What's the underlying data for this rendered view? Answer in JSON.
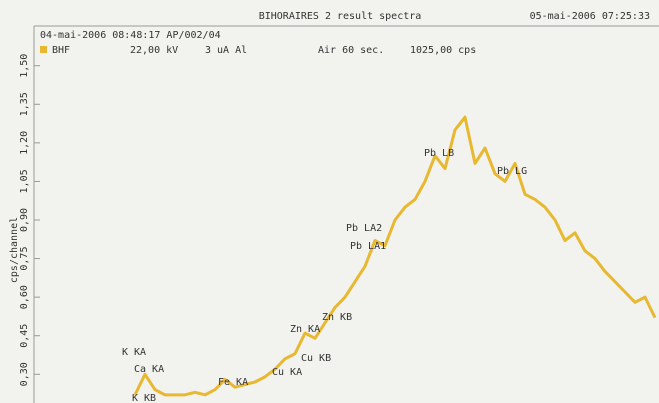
{
  "chart_data": {
    "type": "line",
    "title": "BIHORAIRES 2 result spectra",
    "date": "05-mai-2006 07:25:33",
    "sample": "04-mai-2006 08:48:17 AP/002/04",
    "conditions": [
      "22,00 kV",
      "3 uA Al",
      "Air 60 sec.",
      "1025,00 cps"
    ],
    "ylabel": "cps/channel",
    "ylim": [
      0.2,
      1.6
    ],
    "yticks": [
      {
        "value": 0.3,
        "label": "0,30"
      },
      {
        "value": 0.45,
        "label": "0,45"
      },
      {
        "value": 0.6,
        "label": "0,60"
      },
      {
        "value": 0.75,
        "label": "0,75"
      },
      {
        "value": 0.9,
        "label": "0,90"
      },
      {
        "value": 1.05,
        "label": "1,05"
      },
      {
        "value": 1.2,
        "label": "1,20"
      },
      {
        "value": 1.35,
        "label": "1,35"
      },
      {
        "value": 1.5,
        "label": "1,50"
      }
    ],
    "categories": [
      null,
      null,
      null,
      null,
      null,
      null,
      null,
      null,
      null,
      null,
      null,
      null,
      null,
      null,
      null,
      null,
      null,
      null,
      null,
      null,
      null,
      null,
      null,
      null,
      null,
      null,
      null,
      null,
      null,
      null,
      null,
      null,
      null,
      null,
      null,
      null,
      null,
      null,
      null,
      null,
      null,
      null,
      null,
      null,
      null,
      null,
      null,
      null,
      null,
      null,
      null,
      null,
      null
    ],
    "series": [
      {
        "name": "BHF",
        "color": "#e8b830",
        "values": [
          0.22,
          0.3,
          0.24,
          0.22,
          0.22,
          0.22,
          0.23,
          0.22,
          0.24,
          0.28,
          0.25,
          0.26,
          0.27,
          0.29,
          0.32,
          0.36,
          0.38,
          0.46,
          0.44,
          0.5,
          0.56,
          0.6,
          0.66,
          0.72,
          0.82,
          0.8,
          0.9,
          0.95,
          0.98,
          1.05,
          1.15,
          1.1,
          1.25,
          1.3,
          1.12,
          1.18,
          1.08,
          1.05,
          1.12,
          1.0,
          0.98,
          0.95,
          0.9,
          0.82,
          0.85,
          0.78,
          0.75,
          0.7,
          0.66,
          0.62,
          0.58,
          0.6,
          0.52
        ]
      }
    ],
    "annotations": [
      "K KA",
      "Ca KA",
      "K KB",
      "Fe KA",
      "Cu KA",
      "Cu KB",
      "Zn KA",
      "Zn KB",
      "Pb LA2",
      "Pb LA1",
      "Pb LB",
      "Pb LG"
    ]
  }
}
